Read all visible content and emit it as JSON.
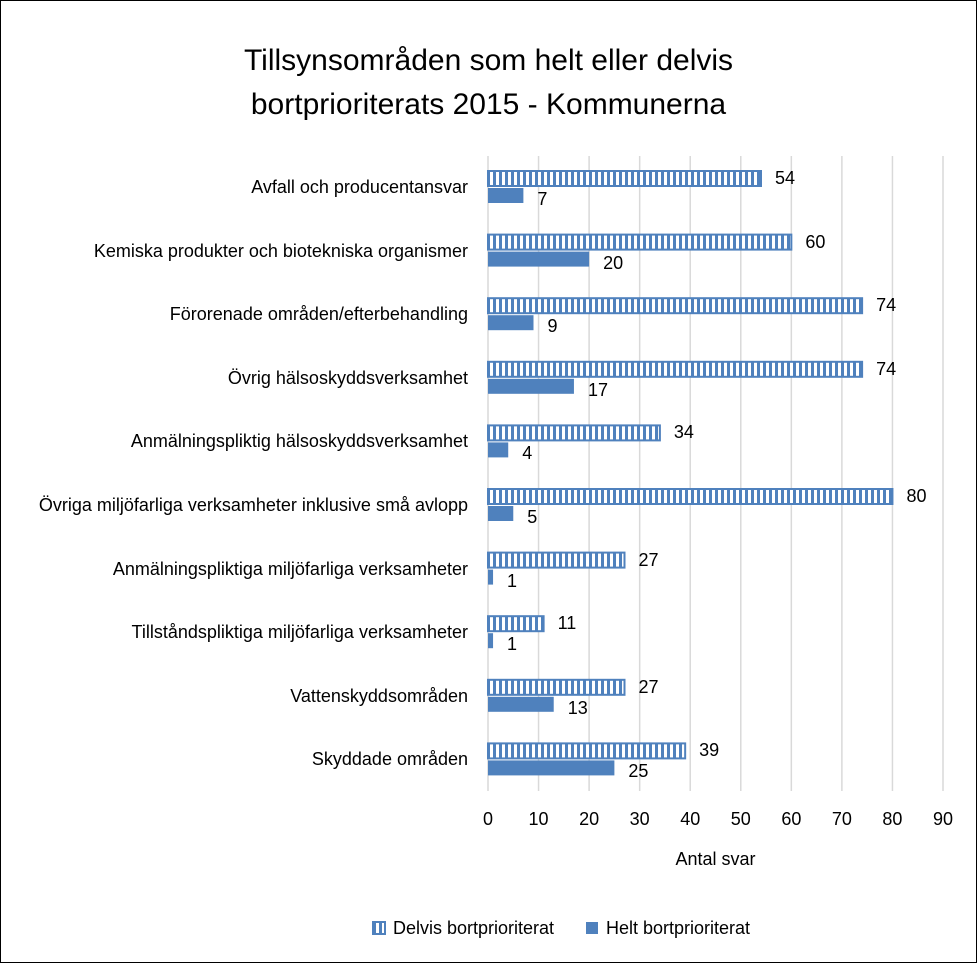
{
  "chart_data": {
    "type": "bar",
    "orientation": "horizontal",
    "title": "Tillsynsområden som helt eller delvis bortprioriterats 2015 - Kommunerna",
    "categories": [
      "Avfall och producentansvar",
      "Kemiska produkter och biotekniska organismer",
      "Förorenade områden/efterbehandling",
      "Övrig hälsoskyddsverksamhet",
      "Anmälningspliktig hälsoskyddsverksamhet",
      "Övriga miljöfarliga verksamheter inklusive små avlopp",
      "Anmälningspliktiga miljöfarliga verksamheter",
      "Tillståndspliktiga miljöfarliga verksamheter",
      "Vattenskyddsområden",
      "Skyddade områden"
    ],
    "series": [
      {
        "name": "Delvis bortprioriterat",
        "color": "#4f81bd",
        "pattern": "vertical-stripes",
        "values": [
          54,
          60,
          74,
          74,
          34,
          80,
          27,
          11,
          27,
          39
        ]
      },
      {
        "name": "Helt bortprioriterat",
        "color": "#4f81bd",
        "values": [
          7,
          20,
          9,
          17,
          4,
          5,
          1,
          1,
          13,
          25
        ]
      }
    ],
    "xlabel": "Antal svar",
    "xlim": [
      0,
      90
    ],
    "xticks": [
      0,
      10,
      20,
      30,
      40,
      50,
      60,
      70,
      80,
      90
    ],
    "grid": true,
    "legend": "bottom"
  }
}
